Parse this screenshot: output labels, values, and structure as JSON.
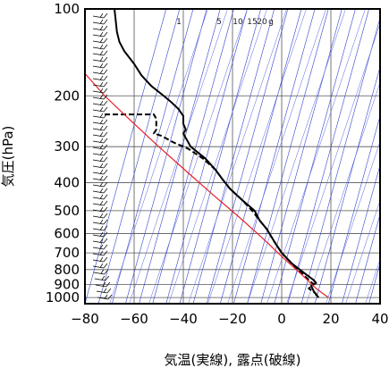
{
  "chart_data": {
    "type": "line",
    "title": "",
    "xlabel": "気温(実線), 露点(破線)",
    "ylabel": "気圧(hPa)",
    "xlim": [
      -80,
      40
    ],
    "ylim": [
      1050,
      100
    ],
    "y_scale": "log",
    "x_ticks": [
      "−80",
      "−60",
      "−40",
      "−20",
      "0",
      "20",
      "40"
    ],
    "x_tick_values": [
      -80,
      -60,
      -40,
      -20,
      0,
      20,
      40
    ],
    "y_ticks": [
      "100",
      "200",
      "300",
      "400",
      "500",
      "600",
      "700",
      "800",
      "900",
      "1000"
    ],
    "y_tick_values": [
      100,
      200,
      300,
      400,
      500,
      600,
      700,
      800,
      900,
      1000
    ],
    "mixing_ratio_labels": [
      "1",
      "5",
      "10",
      "15",
      "20",
      "g"
    ],
    "mixing_ratio_values": [
      1,
      5,
      10,
      15,
      20
    ],
    "grid": true,
    "series": [
      {
        "style": "solid",
        "color": "#000000",
        "points": [
          [
            -68,
            100
          ],
          [
            -67,
            120
          ],
          [
            -66,
            130
          ],
          [
            -64,
            140
          ],
          [
            -60,
            155
          ],
          [
            -57,
            170
          ],
          [
            -53,
            185
          ],
          [
            -48,
            200
          ],
          [
            -45,
            210
          ],
          [
            -42,
            222
          ],
          [
            -40,
            235
          ],
          [
            -40,
            250
          ],
          [
            -39,
            262
          ],
          [
            -40,
            270
          ],
          [
            -39,
            280
          ],
          [
            -37,
            300
          ],
          [
            -31,
            330
          ],
          [
            -27,
            360
          ],
          [
            -24,
            390
          ],
          [
            -21,
            420
          ],
          [
            -16,
            460
          ],
          [
            -11,
            500
          ],
          [
            -9,
            540
          ],
          [
            -6,
            580
          ],
          [
            -3,
            640
          ],
          [
            0,
            700
          ],
          [
            4,
            760
          ],
          [
            9,
            820
          ],
          [
            13,
            870
          ],
          [
            14,
            890
          ],
          [
            12,
            910
          ],
          [
            13,
            950
          ],
          [
            15,
            1000
          ]
        ]
      },
      {
        "style": "dashed",
        "color": "#000000",
        "points": [
          [
            -72,
            232
          ],
          [
            -60,
            232
          ],
          [
            -52,
            232
          ],
          [
            -51,
            240
          ],
          [
            -51,
            250
          ],
          [
            -51,
            262
          ],
          [
            -52,
            270
          ],
          [
            -49,
            275
          ],
          [
            -44,
            290
          ],
          [
            -38,
            305
          ],
          [
            -32,
            330
          ],
          [
            -27,
            360
          ],
          [
            -24,
            390
          ],
          [
            -21,
            420
          ],
          [
            -16,
            460
          ],
          [
            -12,
            500
          ],
          [
            -9,
            540
          ],
          [
            -6,
            580
          ],
          [
            -3,
            640
          ],
          [
            0,
            700
          ],
          [
            4,
            760
          ],
          [
            8,
            820
          ],
          [
            11,
            870
          ],
          [
            13,
            900
          ],
          [
            11,
            930
          ],
          [
            14,
            970
          ],
          [
            14,
            1000
          ]
        ]
      },
      {
        "style": "solid",
        "color": "#e8202a",
        "points": [
          [
            -82,
            160
          ],
          [
            -72,
            200
          ],
          [
            -60,
            250
          ],
          [
            -50,
            300
          ],
          [
            -38,
            370
          ],
          [
            -28,
            440
          ],
          [
            -18,
            520
          ],
          [
            -8,
            620
          ],
          [
            0,
            720
          ],
          [
            8,
            830
          ],
          [
            14,
            930
          ],
          [
            19,
            1000
          ]
        ]
      }
    ],
    "wind_barbs_note": "wind barbs along left edge at each pressure level"
  }
}
